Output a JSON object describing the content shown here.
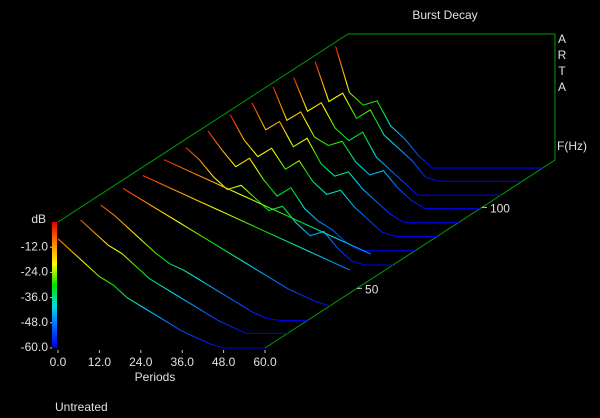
{
  "chart_data": {
    "type": "waterfall",
    "title": "Burst Decay",
    "watermark": "ARTA",
    "subtitle": "Untreated",
    "xlabel": "Periods",
    "ylabel": "dB",
    "zlabel": "F(Hz)",
    "xlim": [
      0,
      60
    ],
    "xticks": [
      {
        "value": 0,
        "label": "0.0"
      },
      {
        "value": 12,
        "label": "12.0"
      },
      {
        "value": 24,
        "label": "24.0"
      },
      {
        "value": 36,
        "label": "36.0"
      },
      {
        "value": 48,
        "label": "48.0"
      },
      {
        "value": 60,
        "label": "60.0"
      }
    ],
    "ylim": [
      -60,
      0
    ],
    "yticks": [
      {
        "value": -12,
        "label": "-12.0"
      },
      {
        "value": -24,
        "label": "-24.0"
      },
      {
        "value": -36,
        "label": "-36.0"
      },
      {
        "value": -48,
        "label": "-48.0"
      },
      {
        "value": -60,
        "label": "-60.0"
      }
    ],
    "zlim": [
      30,
      150
    ],
    "zscale": "log",
    "zticks": [
      50,
      100
    ],
    "box_color": "#00a000",
    "colorscale": [
      "#e00000",
      "#ff8000",
      "#ffff00",
      "#00e000",
      "#00e0e0",
      "#0060ff",
      "#0000e0"
    ],
    "x": [
      0,
      4,
      8,
      12,
      16,
      20,
      24,
      28,
      32,
      36,
      40,
      44,
      48,
      52,
      56,
      60
    ],
    "slices": [
      {
        "frequency": 30,
        "values": [
          -8,
          -14,
          -20,
          -26,
          -30,
          -36,
          -40,
          -44,
          -48,
          -52,
          -55,
          -58,
          -60,
          -60,
          -60,
          -60
        ]
      },
      {
        "frequency": 34,
        "values": [
          -6,
          -12,
          -18,
          -22,
          -28,
          -34,
          -38,
          -42,
          -46,
          -50,
          -54,
          -57,
          -60,
          -60,
          -60,
          -60
        ]
      },
      {
        "frequency": 38,
        "values": [
          -5,
          -10,
          -16,
          -22,
          -28,
          -33,
          -36,
          -40,
          -44,
          -48,
          -52,
          -56,
          -59,
          -60,
          -60,
          -60
        ]
      },
      {
        "frequency": 43,
        "values": [
          -4,
          -8,
          -12,
          -16,
          -20,
          -24,
          -28,
          -32,
          -36,
          -40,
          -44,
          -48,
          -52,
          -55,
          -58,
          -60
        ]
      },
      {
        "frequency": 48,
        "values": [
          -4,
          -7,
          -10,
          -13,
          -16,
          -19,
          -22,
          -25,
          -28,
          -31,
          -34,
          -37,
          -40,
          -43,
          -46,
          -49
        ]
      },
      {
        "frequency": 54,
        "values": [
          -3,
          -6,
          -9,
          -12,
          -15,
          -18,
          -21,
          -24,
          -27,
          -30,
          -33,
          -36,
          -39,
          -42,
          -45,
          -48
        ]
      },
      {
        "frequency": 61,
        "values": [
          -4,
          -10,
          -18,
          -24,
          -22,
          -28,
          -34,
          -32,
          -40,
          -46,
          -44,
          -52,
          -58,
          -60,
          -60,
          -60
        ]
      },
      {
        "frequency": 69,
        "values": [
          -3,
          -12,
          -20,
          -16,
          -26,
          -34,
          -30,
          -40,
          -46,
          -50,
          -56,
          -60,
          -60,
          -60,
          -60,
          -60
        ]
      },
      {
        "frequency": 78,
        "values": [
          -2,
          -14,
          -22,
          -18,
          -28,
          -24,
          -34,
          -40,
          -38,
          -46,
          -52,
          -58,
          -60,
          -60,
          -60,
          -60
        ]
      },
      {
        "frequency": 88,
        "values": [
          -3,
          -16,
          -12,
          -24,
          -20,
          -32,
          -38,
          -36,
          -44,
          -50,
          -56,
          -60,
          -60,
          -60,
          -60,
          -60
        ]
      },
      {
        "frequency": 99,
        "values": [
          -2,
          -18,
          -14,
          -26,
          -30,
          -28,
          -38,
          -44,
          -42,
          -50,
          -56,
          -60,
          -60,
          -60,
          -60,
          -60
        ]
      },
      {
        "frequency": 111,
        "values": [
          -4,
          -20,
          -16,
          -28,
          -34,
          -30,
          -42,
          -48,
          -54,
          -60,
          -60,
          -60,
          -60,
          -60,
          -60,
          -60
        ]
      },
      {
        "frequency": 125,
        "values": [
          -3,
          -22,
          -18,
          -30,
          -26,
          -38,
          -44,
          -50,
          -58,
          -60,
          -60,
          -60,
          -60,
          -60,
          -60,
          -60
        ]
      },
      {
        "frequency": 140,
        "values": [
          -2,
          -24,
          -30,
          -28,
          -40,
          -46,
          -54,
          -60,
          -60,
          -60,
          -60,
          -60,
          -60,
          -60,
          -60,
          -60
        ]
      }
    ]
  }
}
